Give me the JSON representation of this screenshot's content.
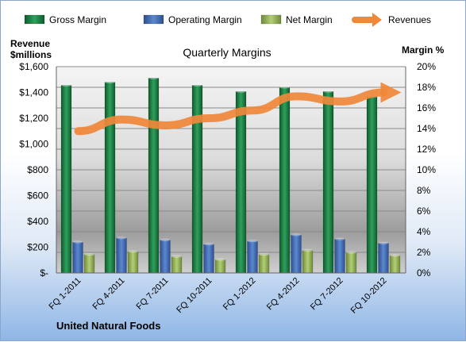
{
  "chart_data": {
    "type": "bar",
    "title": "Quarterly Margins",
    "footer": "United Natural Foods",
    "y_left_label": [
      "Revenue",
      "$millions"
    ],
    "y_right_label": "Margin %",
    "y_left_ticks": [
      "$-",
      "$200",
      "$400",
      "$600",
      "$800",
      "$1,000",
      "$1,200",
      "$1,400",
      "$1,600"
    ],
    "y_left_range": [
      0,
      1600
    ],
    "y_right_ticks": [
      "0%",
      "2%",
      "4%",
      "6%",
      "8%",
      "10%",
      "12%",
      "14%",
      "16%",
      "18%",
      "20%"
    ],
    "y_right_range": [
      0,
      20
    ],
    "categories": [
      "FQ 1-2011",
      "FQ 4-2011",
      "FQ 7-2011",
      "FQ 10-2011",
      "FQ 1-2012",
      "FQ 4-2012",
      "FQ 7-2012",
      "FQ 10-2012"
    ],
    "legend_position": "top",
    "series": [
      {
        "name": "Gross Margin",
        "kind": "bar",
        "axis": "right",
        "color": "#1b7a43",
        "values": [
          18.2,
          18.5,
          18.9,
          18.2,
          17.6,
          18.0,
          17.6,
          17.1
        ]
      },
      {
        "name": "Operating Margin",
        "kind": "bar",
        "axis": "right",
        "color": "#4472c4",
        "values": [
          3.0,
          3.4,
          3.2,
          2.8,
          3.1,
          3.7,
          3.3,
          2.9
        ]
      },
      {
        "name": "Net Margin",
        "kind": "bar",
        "axis": "right",
        "color": "#9bbb59",
        "values": [
          1.8,
          2.1,
          1.6,
          1.3,
          1.8,
          2.2,
          2.0,
          1.7
        ]
      },
      {
        "name": "Revenues",
        "kind": "line",
        "axis": "left",
        "color": "#f0883a",
        "values": [
          1100,
          1190,
          1145,
          1200,
          1260,
          1370,
          1330,
          1400
        ]
      }
    ]
  }
}
